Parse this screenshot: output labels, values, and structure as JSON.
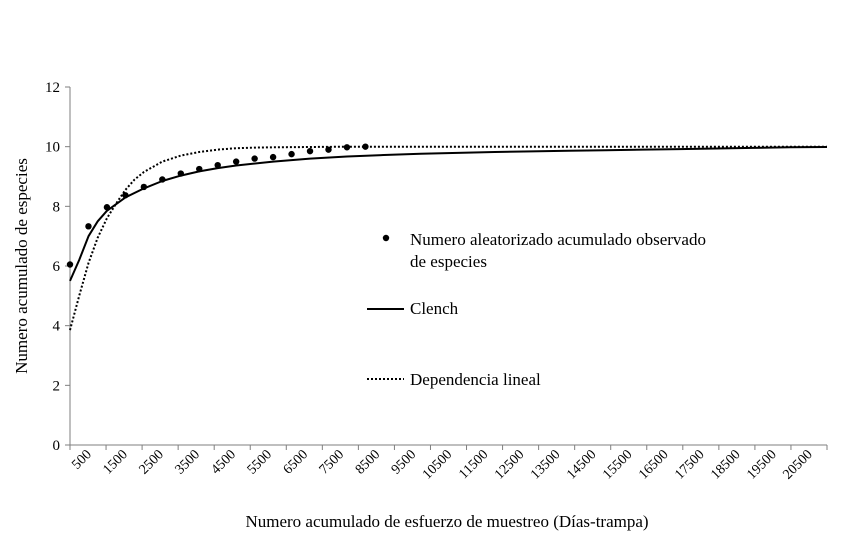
{
  "chart_data": {
    "type": "line",
    "title": "",
    "xlabel": "Numero acumulado  de esfuerzo de muestreo (Días-trampa)",
    "ylabel": "Numero  acumulado  de  especies",
    "xlim": [
      500,
      21000
    ],
    "ylim": [
      0,
      12
    ],
    "x_ticks": [
      "500",
      "1500",
      "2500",
      "3500",
      "4500",
      "5500",
      "6500",
      "7500",
      "8500",
      "9500",
      "10500",
      "11500",
      "12500",
      "13500",
      "14500",
      "15500",
      "16500",
      "17500",
      "18500",
      "19500",
      "20500"
    ],
    "y_ticks": [
      "0",
      "2",
      "4",
      "6",
      "8",
      "10",
      "12"
    ],
    "grid": false,
    "legend_position": "center-right",
    "legend": {
      "observed": "Numero aleatorizado acumulado observado",
      "observed_line2": "de especies",
      "clench": "Clench",
      "linear": "Dependencia lineal"
    },
    "series": [
      {
        "name": "Numero aleatorizado acumulado observado de especies",
        "style": "markers",
        "color": "#000000",
        "x": [
          500,
          1000,
          1500,
          2000,
          2500,
          3000,
          3500,
          4000,
          4500,
          5000,
          5500,
          6000,
          6500,
          7000,
          7500,
          8000,
          8500
        ],
        "y": [
          6.05,
          7.33,
          7.97,
          8.37,
          8.65,
          8.9,
          9.1,
          9.25,
          9.38,
          9.5,
          9.6,
          9.65,
          9.75,
          9.85,
          9.9,
          9.98,
          10.0
        ]
      },
      {
        "name": "Clench",
        "style": "solid",
        "color": "#000000",
        "x": [
          500,
          750,
          1000,
          1250,
          1500,
          2000,
          2500,
          3000,
          3500,
          4000,
          4500,
          5000,
          6000,
          7000,
          8000,
          9000,
          10000,
          11000,
          12000,
          13000,
          14000,
          15000,
          16000,
          17000,
          18000,
          19000,
          20000,
          21000
        ],
        "y": [
          5.5,
          6.2,
          7.0,
          7.5,
          7.85,
          8.3,
          8.6,
          8.85,
          9.03,
          9.17,
          9.28,
          9.37,
          9.5,
          9.6,
          9.67,
          9.72,
          9.76,
          9.79,
          9.82,
          9.84,
          9.86,
          9.88,
          9.9,
          9.92,
          9.94,
          9.96,
          9.98,
          9.99
        ]
      },
      {
        "name": "Dependencia lineal",
        "style": "dotted",
        "color": "#000000",
        "x": [
          500,
          750,
          1000,
          1250,
          1500,
          1750,
          2000,
          2250,
          2500,
          3000,
          3500,
          4000,
          4500,
          5000,
          5500,
          6000,
          7000,
          8000,
          9000,
          10000,
          12000,
          14000,
          16000,
          18000,
          20000,
          21000
        ],
        "y": [
          3.85,
          5.0,
          6.1,
          6.95,
          7.6,
          8.1,
          8.55,
          8.9,
          9.15,
          9.5,
          9.7,
          9.82,
          9.9,
          9.95,
          9.97,
          9.98,
          9.99,
          10.0,
          10.0,
          10.0,
          10.0,
          10.0,
          10.0,
          10.0,
          10.0,
          10.0
        ]
      }
    ]
  }
}
